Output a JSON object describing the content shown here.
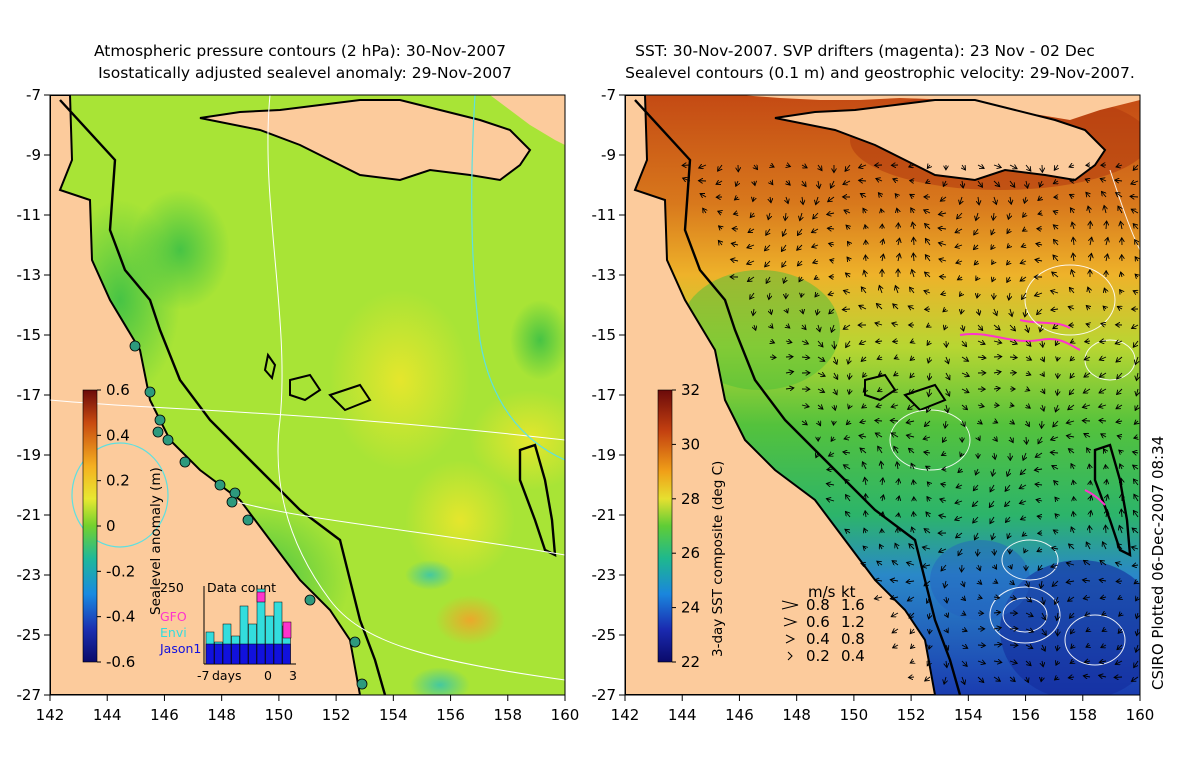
{
  "left_panel": {
    "title_line1": "Atmospheric pressure contours (2 hPa): 30-Nov-2007",
    "title_line2": "Isostatically adjusted sealevel anomaly: 29-Nov-2007",
    "y_ticks": [
      "-7",
      "-9",
      "-11",
      "-13",
      "-15",
      "-17",
      "-19",
      "-21",
      "-23",
      "-25",
      "-27"
    ],
    "x_ticks": [
      "142",
      "144",
      "146",
      "148",
      "150",
      "152",
      "154",
      "156",
      "158",
      "160"
    ],
    "colorbar": {
      "label": "Sealevel anomaly (m)",
      "ticks": [
        "0.6",
        "0.4",
        "0.2",
        "0",
        "-0.2",
        "-0.4",
        "-0.6"
      ]
    },
    "inset": {
      "title": "Data count",
      "ymax": "250",
      "legend": [
        {
          "name": "GFO",
          "color": "#ff33cc"
        },
        {
          "name": "Envi",
          "color": "#33dddd"
        },
        {
          "name": "Jason1",
          "color": "#1111dd"
        }
      ],
      "xlabels": [
        "-7",
        "days",
        "0",
        "3"
      ]
    }
  },
  "right_panel": {
    "title_line1": "SST: 30-Nov-2007. SVP drifters (magenta): 23 Nov - 02 Dec",
    "title_line2": "Sealevel contours (0.1 m) and geostrophic velocity: 29-Nov-2007.",
    "y_ticks": [
      "-7",
      "-9",
      "-11",
      "-13",
      "-15",
      "-17",
      "-19",
      "-21",
      "-23",
      "-25",
      "-27"
    ],
    "x_ticks": [
      "142",
      "144",
      "146",
      "148",
      "150",
      "152",
      "154",
      "156",
      "158",
      "160"
    ],
    "colorbar": {
      "label": "3-day SST composite (deg C)",
      "ticks": [
        "32",
        "30",
        "28",
        "26",
        "24",
        "22"
      ]
    },
    "velocity_legend": {
      "header_ms": "m/s",
      "header_kt": "kt",
      "rows": [
        {
          "ms": "0.8",
          "kt": "1.6"
        },
        {
          "ms": "0.6",
          "kt": "1.2"
        },
        {
          "ms": "0.4",
          "kt": "0.8"
        },
        {
          "ms": "0.2",
          "kt": "0.4"
        }
      ]
    }
  },
  "credit": "CSIRO Plotted 06-Dec-2007 08:34",
  "colors": {
    "land": "#fccb9c",
    "ocean_mid": "#a6e633",
    "coast": "#000000"
  }
}
